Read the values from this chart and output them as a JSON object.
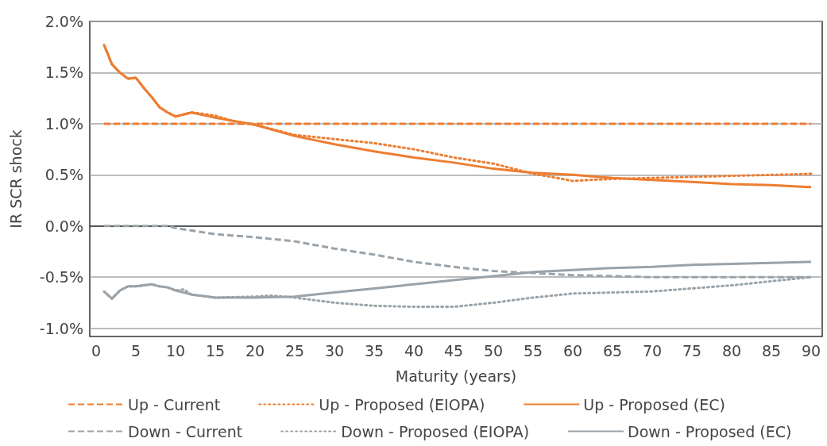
{
  "chart_data": {
    "type": "line",
    "xlabel": "Maturity (years)",
    "ylabel": "IR SCR shock",
    "xlim": [
      -0.8,
      91.4
    ],
    "xticks": [
      0,
      5,
      10,
      15,
      20,
      25,
      30,
      35,
      40,
      45,
      50,
      55,
      60,
      65,
      70,
      75,
      80,
      85,
      90
    ],
    "ylim": [
      -1.08,
      2.0
    ],
    "yticks": [
      {
        "value": -1.0,
        "label": "-1.0%"
      },
      {
        "value": -0.5,
        "label": "-0.5%"
      },
      {
        "value": 0,
        "label": "0.0%"
      },
      {
        "value": 0.5,
        "label": "0.5%"
      },
      {
        "value": 1.0,
        "label": "1.0%"
      },
      {
        "value": 1.5,
        "label": "1.5%"
      },
      {
        "value": 2.0,
        "label": "2.0%"
      }
    ],
    "grid": "y",
    "legend": "bottom",
    "marker": "none",
    "series": [
      {
        "name": "Up - Current",
        "color": "#ed7d31",
        "line_style": "dashed",
        "x": [
          1,
          90
        ],
        "values": [
          1.0,
          1.0
        ]
      },
      {
        "name": "Up - Proposed (EIOPA)",
        "color": "#ed7d31",
        "line_style": "dotted",
        "x": [
          1,
          2,
          3,
          4,
          5,
          6,
          7,
          8,
          9,
          10,
          11,
          12,
          13,
          15,
          17,
          20,
          25,
          30,
          35,
          40,
          45,
          50,
          55,
          58,
          60,
          62,
          65,
          70,
          75,
          80,
          85,
          90
        ],
        "values": [
          1.77,
          1.58,
          1.5,
          1.44,
          1.45,
          1.35,
          1.26,
          1.16,
          1.11,
          1.07,
          1.09,
          1.11,
          1.1,
          1.08,
          1.03,
          0.99,
          0.89,
          0.85,
          0.81,
          0.75,
          0.67,
          0.61,
          0.51,
          0.47,
          0.44,
          0.45,
          0.46,
          0.47,
          0.48,
          0.49,
          0.5,
          0.51
        ]
      },
      {
        "name": "Up - Proposed (EC)",
        "color": "#ed7d31",
        "line_style": "solid",
        "x": [
          1,
          2,
          3,
          4,
          5,
          6,
          7,
          8,
          9,
          10,
          11,
          12,
          15,
          20,
          25,
          30,
          35,
          40,
          45,
          50,
          55,
          60,
          65,
          70,
          75,
          80,
          85,
          90
        ],
        "values": [
          1.77,
          1.58,
          1.5,
          1.44,
          1.45,
          1.35,
          1.26,
          1.16,
          1.11,
          1.07,
          1.09,
          1.11,
          1.06,
          0.99,
          0.88,
          0.8,
          0.73,
          0.67,
          0.62,
          0.56,
          0.52,
          0.5,
          0.47,
          0.45,
          0.43,
          0.41,
          0.4,
          0.38
        ]
      },
      {
        "name": "Down - Current",
        "color": "#9aa3a9",
        "line_style": "dashed",
        "x": [
          1,
          9,
          10,
          15,
          20,
          25,
          30,
          35,
          40,
          45,
          50,
          55,
          60,
          65,
          70,
          90
        ],
        "values": [
          0,
          0,
          -0.02,
          -0.08,
          -0.11,
          -0.15,
          -0.22,
          -0.28,
          -0.35,
          -0.4,
          -0.44,
          -0.46,
          -0.48,
          -0.49,
          -0.5,
          -0.5
        ]
      },
      {
        "name": "Down - Proposed (EIOPA)",
        "color": "#9aa3a9",
        "line_style": "dotted",
        "x": [
          1,
          2,
          3,
          4,
          5,
          6,
          7,
          8,
          9,
          10,
          11,
          12,
          15,
          20,
          22,
          25,
          30,
          35,
          40,
          45,
          50,
          55,
          60,
          65,
          70,
          75,
          80,
          85,
          90
        ],
        "values": [
          -0.64,
          -0.71,
          -0.63,
          -0.59,
          -0.59,
          -0.58,
          -0.57,
          -0.59,
          -0.6,
          -0.63,
          -0.62,
          -0.67,
          -0.7,
          -0.69,
          -0.68,
          -0.7,
          -0.75,
          -0.78,
          -0.79,
          -0.79,
          -0.75,
          -0.7,
          -0.66,
          -0.65,
          -0.64,
          -0.61,
          -0.58,
          -0.54,
          -0.5
        ]
      },
      {
        "name": "Down - Proposed (EC)",
        "color": "#9aa3a9",
        "line_style": "solid",
        "x": [
          1,
          2,
          3,
          4,
          5,
          6,
          7,
          8,
          9,
          10,
          12,
          15,
          20,
          25,
          30,
          35,
          40,
          45,
          50,
          55,
          60,
          65,
          70,
          75,
          80,
          85,
          90
        ],
        "values": [
          -0.64,
          -0.71,
          -0.63,
          -0.59,
          -0.59,
          -0.58,
          -0.57,
          -0.59,
          -0.6,
          -0.63,
          -0.67,
          -0.7,
          -0.7,
          -0.69,
          -0.65,
          -0.61,
          -0.57,
          -0.53,
          -0.49,
          -0.45,
          -0.43,
          -0.41,
          -0.4,
          -0.38,
          -0.37,
          -0.36,
          -0.35
        ]
      }
    ]
  }
}
